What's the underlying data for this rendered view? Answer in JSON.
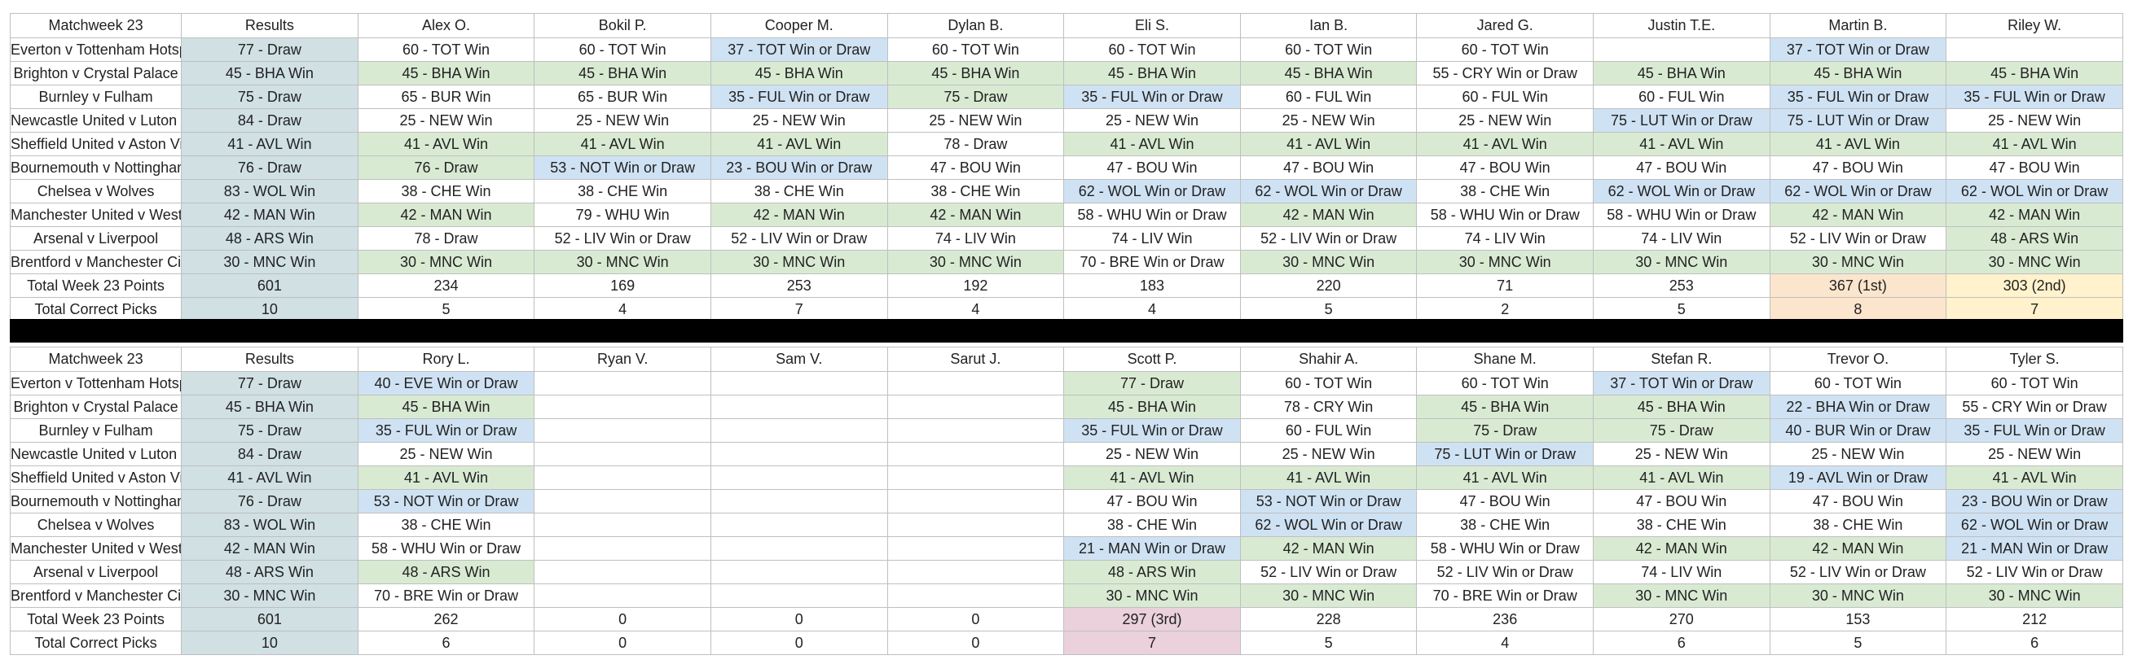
{
  "sections": [
    {
      "title": "Matchweek 23",
      "results_header": "Results",
      "players": [
        "Alex O.",
        "Bokil P.",
        "Cooper M.",
        "Dylan B.",
        "Eli S.",
        "Ian B.",
        "Jared G.",
        "Justin T.E.",
        "Martin B.",
        "Riley W."
      ],
      "fixtures": [
        {
          "match": "Everton v Tottenham Hotspur",
          "result": "77 - Draw",
          "picks": [
            "60 - TOT Win",
            "60 - TOT Win",
            "37 - TOT Win or Draw",
            "60 - TOT Win",
            "60 - TOT Win",
            "60 - TOT Win",
            "60 - TOT Win",
            "",
            "37 - TOT Win or Draw",
            ""
          ],
          "colors": [
            "",
            "",
            "b",
            "",
            "",
            "",
            "",
            "",
            "b",
            ""
          ]
        },
        {
          "match": "Brighton v Crystal Palace",
          "result": "45 - BHA Win",
          "picks": [
            "45 - BHA Win",
            "45 - BHA Win",
            "45 - BHA Win",
            "45 - BHA Win",
            "45 - BHA Win",
            "45 - BHA Win",
            "55 - CRY Win or Draw",
            "45 - BHA Win",
            "45 - BHA Win",
            "45 - BHA Win"
          ],
          "colors": [
            "g",
            "g",
            "g",
            "g",
            "g",
            "g",
            "",
            "g",
            "g",
            "g"
          ]
        },
        {
          "match": "Burnley v Fulham",
          "result": "75 - Draw",
          "picks": [
            "65 - BUR Win",
            "65 - BUR Win",
            "35 - FUL Win or Draw",
            "75 - Draw",
            "35 - FUL Win or Draw",
            "60 - FUL Win",
            "60 - FUL Win",
            "60 - FUL Win",
            "35 - FUL Win or Draw",
            "35 - FUL Win or Draw"
          ],
          "colors": [
            "",
            "",
            "b",
            "g",
            "b",
            "",
            "",
            "",
            "b",
            "b"
          ]
        },
        {
          "match": "Newcastle United v Luton Town",
          "result": "84 - Draw",
          "picks": [
            "25 - NEW Win",
            "25 - NEW Win",
            "25 - NEW Win",
            "25 - NEW Win",
            "25 - NEW Win",
            "25 - NEW Win",
            "25 - NEW Win",
            "75 - LUT Win or Draw",
            "75 - LUT Win or Draw",
            "25 - NEW Win"
          ],
          "colors": [
            "",
            "",
            "",
            "",
            "",
            "",
            "",
            "b",
            "b",
            ""
          ]
        },
        {
          "match": "Sheffield United v Aston Villa",
          "result": "41 - AVL Win",
          "picks": [
            "41 - AVL Win",
            "41 - AVL Win",
            "41 - AVL Win",
            "78 - Draw",
            "41 - AVL Win",
            "41 - AVL Win",
            "41 - AVL Win",
            "41 - AVL Win",
            "41 - AVL Win",
            "41 - AVL Win"
          ],
          "colors": [
            "g",
            "g",
            "g",
            "",
            "g",
            "g",
            "g",
            "g",
            "g",
            "g"
          ]
        },
        {
          "match": "Bournemouth v Nottingham Forest",
          "result": "76 - Draw",
          "picks": [
            "76 - Draw",
            "53 - NOT Win or Draw",
            "23 - BOU Win or Draw",
            "47 - BOU Win",
            "47 - BOU Win",
            "47 - BOU Win",
            "47 - BOU Win",
            "47 - BOU Win",
            "47 - BOU Win",
            "47 - BOU Win"
          ],
          "colors": [
            "g",
            "b",
            "b",
            "",
            "",
            "",
            "",
            "",
            "",
            ""
          ]
        },
        {
          "match": "Chelsea v Wolves",
          "result": "83 - WOL Win",
          "picks": [
            "38 - CHE Win",
            "38 - CHE Win",
            "38 - CHE Win",
            "38 - CHE Win",
            "62 - WOL Win or Draw",
            "62 - WOL Win or Draw",
            "38 - CHE Win",
            "62 - WOL Win or Draw",
            "62 - WOL Win or Draw",
            "62 - WOL Win or Draw"
          ],
          "colors": [
            "",
            "",
            "",
            "",
            "b",
            "b",
            "",
            "b",
            "b",
            "b"
          ]
        },
        {
          "match": "Manchester United v West Ham United",
          "result": "42 - MAN Win",
          "picks": [
            "42 - MAN Win",
            "79 - WHU Win",
            "42 - MAN Win",
            "42 - MAN Win",
            "58 - WHU Win or Draw",
            "42 - MAN Win",
            "58 - WHU Win or Draw",
            "58 - WHU Win or Draw",
            "42 - MAN Win",
            "42 - MAN Win"
          ],
          "colors": [
            "g",
            "",
            "g",
            "g",
            "",
            "g",
            "",
            "",
            "g",
            "g"
          ]
        },
        {
          "match": "Arsenal v Liverpool",
          "result": "48 - ARS Win",
          "picks": [
            "78 - Draw",
            "52 - LIV Win or Draw",
            "52 - LIV Win or Draw",
            "74 - LIV Win",
            "74 - LIV Win",
            "52 - LIV Win or Draw",
            "74 - LIV Win",
            "74 - LIV Win",
            "52 - LIV Win or Draw",
            "48 - ARS Win"
          ],
          "colors": [
            "",
            "",
            "",
            "",
            "",
            "",
            "",
            "",
            "",
            "g"
          ]
        },
        {
          "match": "Brentford v Manchester City",
          "result": "30 - MNC Win",
          "picks": [
            "30 - MNC Win",
            "30 - MNC Win",
            "30 - MNC Win",
            "30 - MNC Win",
            "70 - BRE Win or Draw",
            "30 - MNC Win",
            "30 - MNC Win",
            "30 - MNC Win",
            "30 - MNC Win",
            "30 - MNC Win"
          ],
          "colors": [
            "g",
            "g",
            "g",
            "g",
            "",
            "g",
            "g",
            "g",
            "g",
            "g"
          ]
        }
      ],
      "points_label": "Total Week 23 Points",
      "points_result": "601",
      "points": [
        "234",
        "169",
        "253",
        "192",
        "183",
        "220",
        "71",
        "253",
        "367 (1st)",
        "303 (2nd)"
      ],
      "points_colors": [
        "",
        "",
        "",
        "",
        "",
        "",
        "",
        "",
        "o",
        "y"
      ],
      "correct_label": "Total Correct Picks",
      "correct_result": "10",
      "correct": [
        "5",
        "4",
        "7",
        "4",
        "4",
        "5",
        "2",
        "5",
        "8",
        "7"
      ],
      "correct_colors": [
        "",
        "",
        "",
        "",
        "",
        "",
        "",
        "",
        "o",
        "y"
      ]
    },
    {
      "title": "Matchweek 23",
      "results_header": "Results",
      "players": [
        "Rory L.",
        "Ryan V.",
        "Sam V.",
        "Sarut J.",
        "Scott P.",
        "Shahir A.",
        "Shane M.",
        "Stefan R.",
        "Trevor O.",
        "Tyler S."
      ],
      "fixtures": [
        {
          "match": "Everton v Tottenham Hotspur",
          "result": "77 - Draw",
          "picks": [
            "40 - EVE Win or Draw",
            "",
            "",
            "",
            "77 - Draw",
            "60 - TOT Win",
            "60 - TOT Win",
            "37 - TOT Win or Draw",
            "60 - TOT Win",
            "60 - TOT Win"
          ],
          "colors": [
            "b",
            "",
            "",
            "",
            "g",
            "",
            "",
            "b",
            "",
            ""
          ]
        },
        {
          "match": "Brighton v Crystal Palace",
          "result": "45 - BHA Win",
          "picks": [
            "45 - BHA Win",
            "",
            "",
            "",
            "45 - BHA Win",
            "78 - CRY Win",
            "45 - BHA Win",
            "45 - BHA Win",
            "22 - BHA Win or Draw",
            "55 - CRY Win or Draw"
          ],
          "colors": [
            "g",
            "",
            "",
            "",
            "g",
            "",
            "g",
            "g",
            "b",
            ""
          ]
        },
        {
          "match": "Burnley v Fulham",
          "result": "75 - Draw",
          "picks": [
            "35 - FUL Win or Draw",
            "",
            "",
            "",
            "35 - FUL Win or Draw",
            "60 - FUL Win",
            "75 - Draw",
            "75 - Draw",
            "40 - BUR Win or Draw",
            "35 - FUL Win or Draw"
          ],
          "colors": [
            "b",
            "",
            "",
            "",
            "b",
            "",
            "g",
            "g",
            "b",
            "b"
          ]
        },
        {
          "match": "Newcastle United v Luton Town",
          "result": "84 - Draw",
          "picks": [
            "25 - NEW Win",
            "",
            "",
            "",
            "25 - NEW Win",
            "25 - NEW Win",
            "75 - LUT Win or Draw",
            "25 - NEW Win",
            "25 - NEW Win",
            "25 - NEW Win"
          ],
          "colors": [
            "",
            "",
            "",
            "",
            "",
            "",
            "b",
            "",
            "",
            ""
          ]
        },
        {
          "match": "Sheffield United v Aston Villa",
          "result": "41 - AVL Win",
          "picks": [
            "41 - AVL Win",
            "",
            "",
            "",
            "41 - AVL Win",
            "41 - AVL Win",
            "41 - AVL Win",
            "41 - AVL Win",
            "19 - AVL Win or Draw",
            "41 - AVL Win"
          ],
          "colors": [
            "g",
            "",
            "",
            "",
            "g",
            "g",
            "g",
            "g",
            "b",
            "g"
          ]
        },
        {
          "match": "Bournemouth v Nottingham Forest",
          "result": "76 - Draw",
          "picks": [
            "53 - NOT Win or Draw",
            "",
            "",
            "",
            "47 - BOU Win",
            "53 - NOT Win or Draw",
            "47 - BOU Win",
            "47 - BOU Win",
            "47 - BOU Win",
            "23 - BOU Win or Draw"
          ],
          "colors": [
            "b",
            "",
            "",
            "",
            "",
            "b",
            "",
            "",
            "",
            "b"
          ]
        },
        {
          "match": "Chelsea v Wolves",
          "result": "83 - WOL Win",
          "picks": [
            "38 - CHE Win",
            "",
            "",
            "",
            "38 - CHE Win",
            "62 - WOL Win or Draw",
            "38 - CHE Win",
            "38 - CHE Win",
            "38 - CHE Win",
            "62 - WOL Win or Draw"
          ],
          "colors": [
            "",
            "",
            "",
            "",
            "",
            "b",
            "",
            "",
            "",
            "b"
          ]
        },
        {
          "match": "Manchester United v West Ham United",
          "result": "42 - MAN Win",
          "picks": [
            "58 - WHU Win or Draw",
            "",
            "",
            "",
            "21 - MAN Win or Draw",
            "42 - MAN Win",
            "58 - WHU Win or Draw",
            "42 - MAN Win",
            "42 - MAN Win",
            "21 - MAN Win or Draw"
          ],
          "colors": [
            "",
            "",
            "",
            "",
            "b",
            "g",
            "",
            "g",
            "g",
            "b"
          ]
        },
        {
          "match": "Arsenal v Liverpool",
          "result": "48 - ARS Win",
          "picks": [
            "48 - ARS Win",
            "",
            "",
            "",
            "48 - ARS Win",
            "52 - LIV Win or Draw",
            "52 - LIV Win or Draw",
            "74 - LIV Win",
            "52 - LIV Win or Draw",
            "52 - LIV Win or Draw"
          ],
          "colors": [
            "g",
            "",
            "",
            "",
            "g",
            "",
            "",
            "",
            "",
            ""
          ]
        },
        {
          "match": "Brentford v Manchester City",
          "result": "30 - MNC Win",
          "picks": [
            "70 - BRE Win or Draw",
            "",
            "",
            "",
            "30 - MNC Win",
            "30 - MNC Win",
            "70 - BRE Win or Draw",
            "30 - MNC Win",
            "30 - MNC Win",
            "30 - MNC Win"
          ],
          "colors": [
            "",
            "",
            "",
            "",
            "g",
            "g",
            "",
            "g",
            "g",
            "g"
          ]
        }
      ],
      "points_label": "Total Week 23 Points",
      "points_result": "601",
      "points": [
        "262",
        "0",
        "0",
        "0",
        "297 (3rd)",
        "228",
        "236",
        "270",
        "153",
        "212"
      ],
      "points_colors": [
        "",
        "",
        "",
        "",
        "p",
        "",
        "",
        "",
        "",
        ""
      ],
      "correct_label": "Total Correct Picks",
      "correct_result": "10",
      "correct": [
        "6",
        "0",
        "0",
        "0",
        "7",
        "5",
        "4",
        "6",
        "5",
        "6"
      ],
      "correct_colors": [
        "",
        "",
        "",
        "",
        "p",
        "",
        "",
        "",
        "",
        ""
      ]
    }
  ],
  "colors": {
    "results": "#d0e0e3",
    "correct": "#d9ead3",
    "double_chance": "#cfe2f3",
    "first": "#fce5cd",
    "second": "#fff2cc",
    "third": "#ead1dc"
  }
}
